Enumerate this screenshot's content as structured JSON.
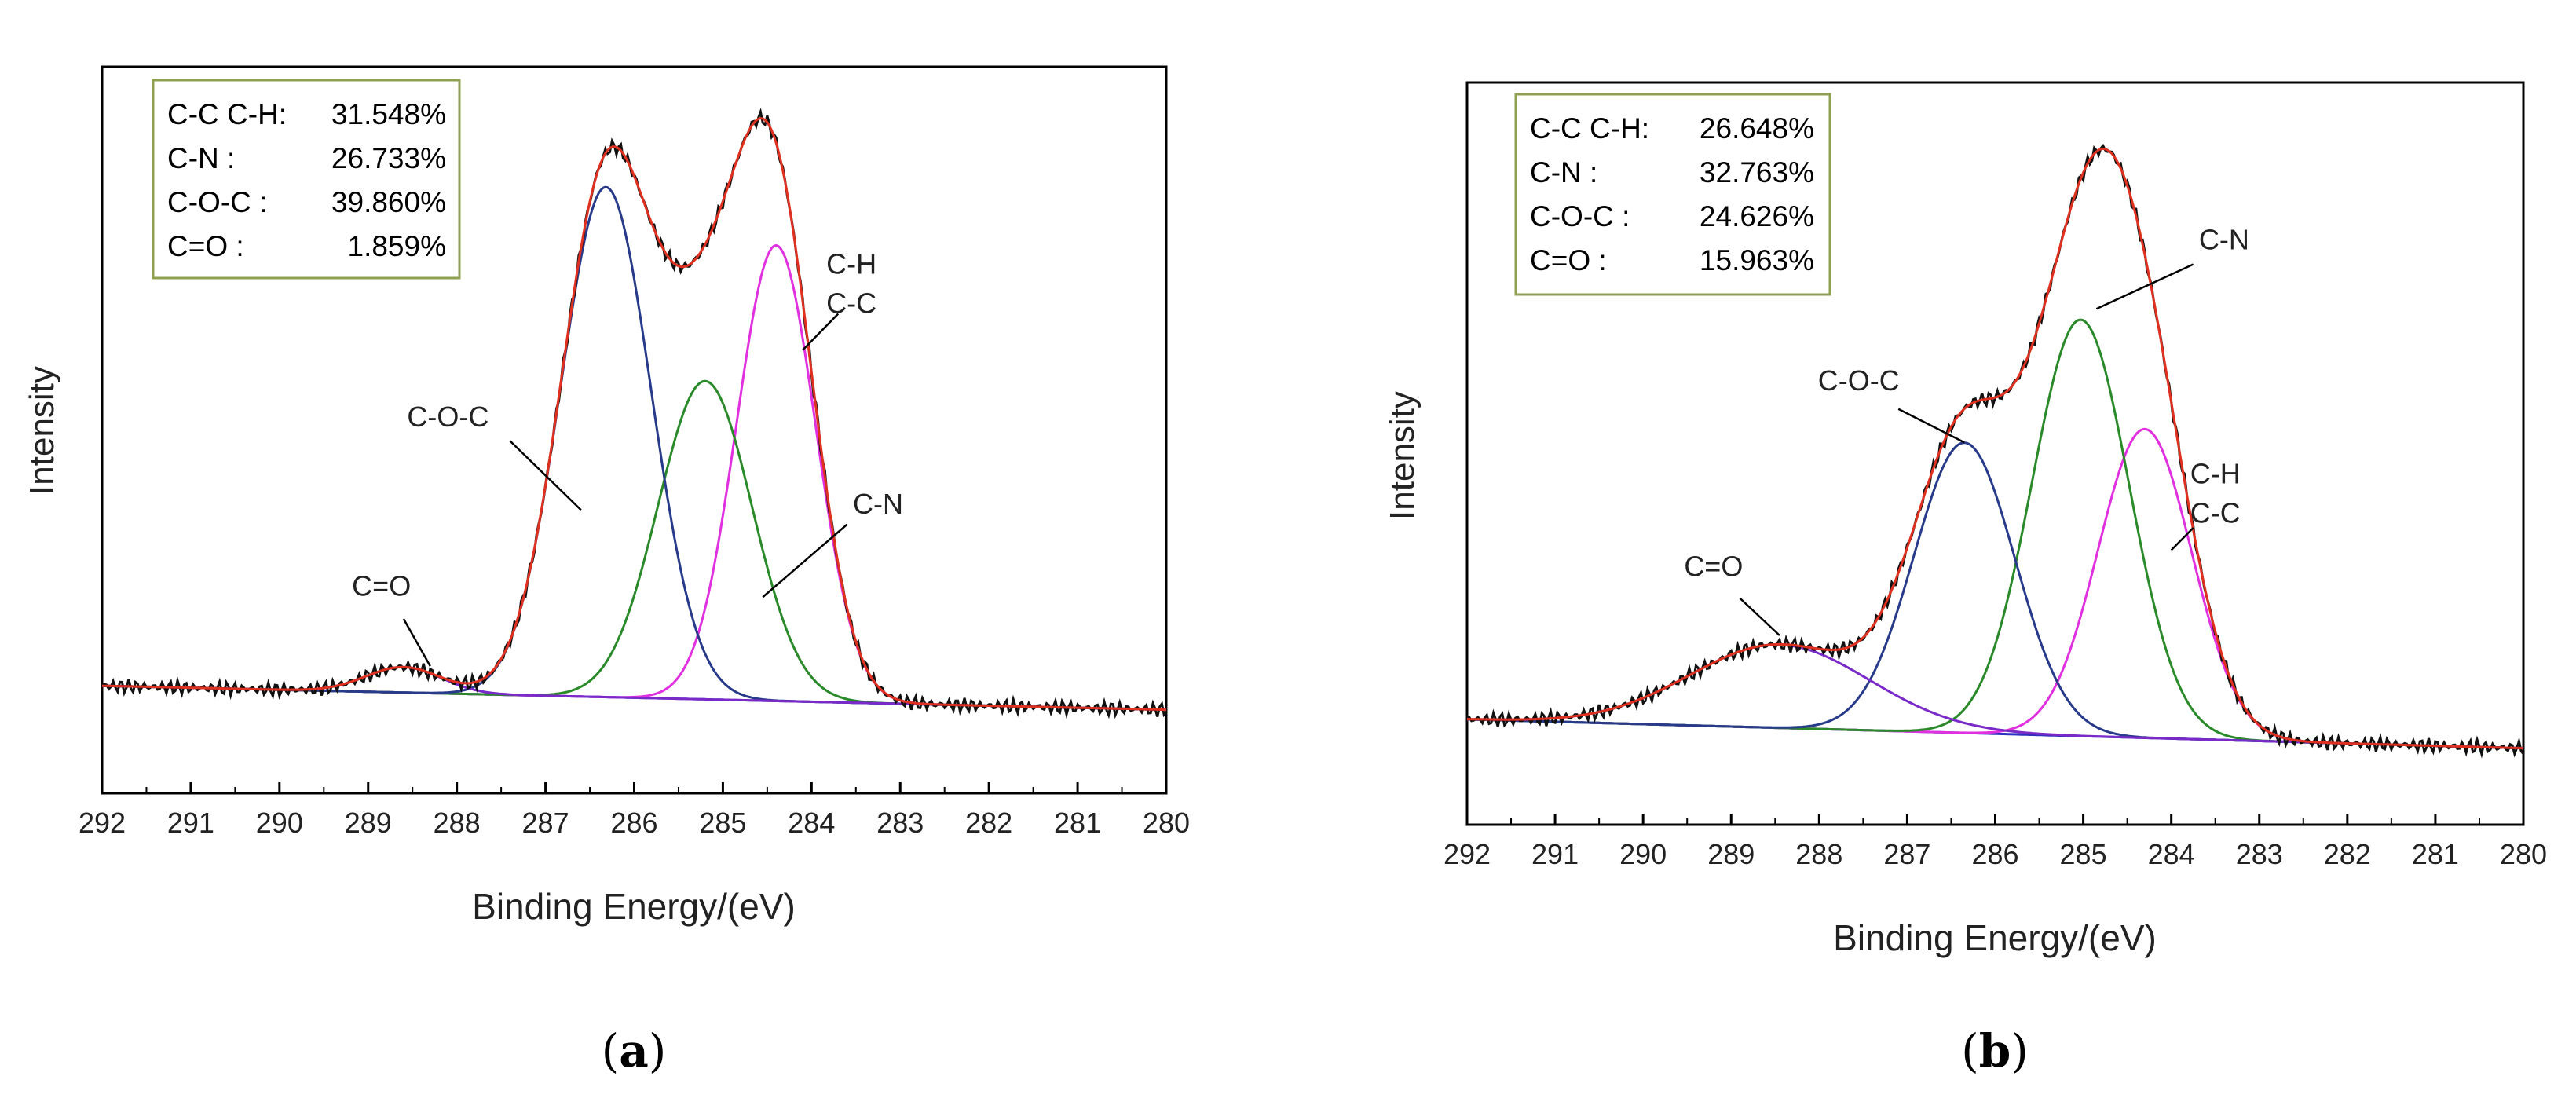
{
  "figure_type": "XPS C1s deconvolution spectra",
  "chart_data": [
    {
      "panel_label": "(a)",
      "panel_letter": "a",
      "type": "line",
      "xlabel": "Binding Energy/(eV)",
      "ylabel": "Intensity",
      "xlim": [
        292,
        280
      ],
      "x_ticks": [
        "292",
        "291",
        "290",
        "289",
        "288",
        "287",
        "286",
        "285",
        "284",
        "283",
        "282",
        "281",
        "280"
      ],
      "ylim": [
        0,
        1
      ],
      "y_ticks_shown": false,
      "background_line": {
        "y_at_292": 0.148,
        "y_at_280": 0.115
      },
      "legend_box": [
        {
          "label": "C-C  C-H:",
          "value": "31.548%"
        },
        {
          "label": "C-N :",
          "value": "26.733%"
        },
        {
          "label": "C-O-C :",
          "value": "39.860%"
        },
        {
          "label": "C=O :",
          "value": "1.859%"
        }
      ],
      "peaks": [
        {
          "name": "C-C/C-H",
          "color": "#e030e0",
          "center": 284.4,
          "height": 0.627,
          "fwhm": 1.05
        },
        {
          "name": "C-N",
          "color": "#2a8a2a",
          "center": 285.2,
          "height": 0.438,
          "fwhm": 1.25
        },
        {
          "name": "C-O-C",
          "color": "#283a8a",
          "center": 286.32,
          "height": 0.702,
          "fwhm": 1.2
        },
        {
          "name": "C=O",
          "color": "#7a2ac8",
          "center": 288.6,
          "height": 0.035,
          "fwhm": 1.0
        }
      ],
      "envelope_color": "#e03020",
      "raw_color": "#111111",
      "background_color": "#3030c0",
      "annotations": [
        {
          "lines": [
            "C=O"
          ],
          "x": 288.85,
          "y": 0.272,
          "leader": [
            [
              288.6,
              0.24
            ],
            [
              288.3,
              0.175
            ]
          ]
        },
        {
          "lines": [
            "C-O-C"
          ],
          "x": 288.1,
          "y": 0.505,
          "leader": [
            [
              287.4,
              0.485
            ],
            [
              286.6,
              0.39
            ]
          ]
        },
        {
          "lines": [
            "C-N"
          ],
          "x": 283.25,
          "y": 0.385,
          "leader": [
            [
              283.6,
              0.37
            ],
            [
              284.55,
              0.27
            ]
          ]
        },
        {
          "lines": [
            "C-H",
            "C-C"
          ],
          "x": 283.55,
          "y": 0.715,
          "leader": [
            [
              283.7,
              0.66
            ],
            [
              284.1,
              0.61
            ]
          ]
        }
      ]
    },
    {
      "panel_label": "(b)",
      "panel_letter": "b",
      "type": "line",
      "xlabel": "Binding Energy/(eV)",
      "ylabel": "Intensity",
      "xlim": [
        292,
        280
      ],
      "x_ticks": [
        "292",
        "291",
        "290",
        "289",
        "288",
        "287",
        "286",
        "285",
        "284",
        "283",
        "282",
        "281",
        "280"
      ],
      "ylim": [
        0,
        1
      ],
      "y_ticks_shown": false,
      "background_line": {
        "y_at_292": 0.142,
        "y_at_280": 0.103
      },
      "legend_box": [
        {
          "label": "C-C  C-H:",
          "value": "26.648%"
        },
        {
          "label": "C-N :",
          "value": "32.763%"
        },
        {
          "label": "C-O-C :",
          "value": "24.626%"
        },
        {
          "label": "C=O :",
          "value": "15.963%"
        }
      ],
      "peaks": [
        {
          "name": "C-C/C-H",
          "color": "#e030e0",
          "center": 284.3,
          "height": 0.416,
          "fwhm": 1.25
        },
        {
          "name": "C-N",
          "color": "#2a8a2a",
          "center": 285.03,
          "height": 0.561,
          "fwhm": 1.3
        },
        {
          "name": "C-O-C",
          "color": "#283a8a",
          "center": 286.35,
          "height": 0.391,
          "fwhm": 1.35
        },
        {
          "name": "C=O",
          "color": "#7a2ac8",
          "center": 288.45,
          "height": 0.112,
          "fwhm": 2.4
        }
      ],
      "envelope_color": "#e03020",
      "raw_color": "#111111",
      "background_color": "#3030c0",
      "annotations": [
        {
          "lines": [
            "C=O"
          ],
          "x": 289.2,
          "y": 0.335,
          "leader": [
            [
              288.9,
              0.305
            ],
            [
              288.45,
              0.255
            ]
          ]
        },
        {
          "lines": [
            "C-O-C"
          ],
          "x": 287.55,
          "y": 0.585,
          "leader": [
            [
              287.1,
              0.56
            ],
            [
              286.35,
              0.515
            ]
          ]
        },
        {
          "lines": [
            "C-N"
          ],
          "x": 283.4,
          "y": 0.775,
          "leader": [
            [
              283.75,
              0.755
            ],
            [
              284.85,
              0.695
            ]
          ]
        },
        {
          "lines": [
            "C-H",
            "C-C"
          ],
          "x": 283.5,
          "y": 0.46,
          "leader": [
            [
              283.75,
              0.4
            ],
            [
              284.0,
              0.37
            ]
          ]
        }
      ]
    }
  ]
}
